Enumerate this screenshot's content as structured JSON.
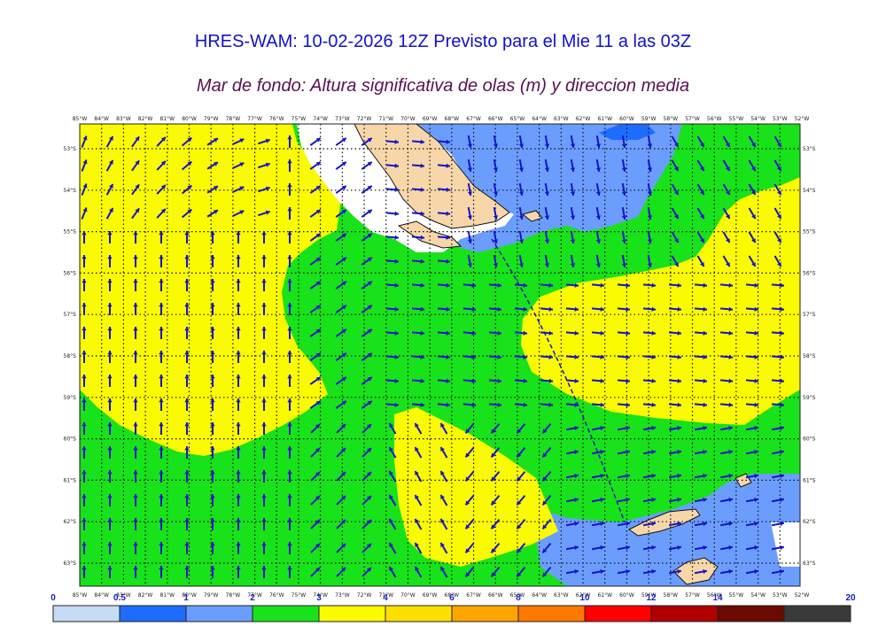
{
  "title": "HRES-WAM: 10-02-2026 12Z Previsto para el Mie 11 a las 03Z",
  "subtitle": "Mar de fondo: Altura significativa de olas (m) y direccion media",
  "map": {
    "longitudes": [
      "85°W",
      "84°W",
      "83°W",
      "82°W",
      "81°W",
      "80°W",
      "79°W",
      "78°W",
      "77°W",
      "76°W",
      "75°W",
      "74°W",
      "73°W",
      "72°W",
      "71°W",
      "70°W",
      "69°W",
      "68°W",
      "67°W",
      "66°W",
      "65°W",
      "64°W",
      "63°W",
      "62°W",
      "61°W",
      "60°W",
      "59°W",
      "58°W",
      "57°W",
      "56°W",
      "55°W",
      "54°W",
      "53°W",
      "52°W"
    ],
    "latitudes": [
      "53°S",
      "54°S",
      "55°S",
      "56°S",
      "57°S",
      "58°S",
      "59°S",
      "60°S",
      "61°S",
      "62°S",
      "63°S"
    ],
    "colors": {
      "land": "#f7d7a9",
      "ice": "#ffffff",
      "sea_0_0_5": "#c6dcf5",
      "sea_0_5_1": "#1e6cff",
      "sea_1_2": "#6b9dff",
      "sea_2_3": "#18e21a",
      "sea_3_4": "#fafa00",
      "grid": "#111111",
      "arrow": "#1414c8"
    }
  },
  "colorbar": {
    "ticks": [
      "0",
      "0.5",
      "1",
      "2",
      "3",
      "4",
      "6",
      "8",
      "10",
      "12",
      "14",
      "20"
    ],
    "colors": [
      "#c6dcf5",
      "#1e6cff",
      "#6b9dff",
      "#18e21a",
      "#fafa00",
      "#fde000",
      "#ffa500",
      "#ff7800",
      "#ff0000",
      "#b00000",
      "#6a0a00",
      "#3a3a3a"
    ]
  }
}
